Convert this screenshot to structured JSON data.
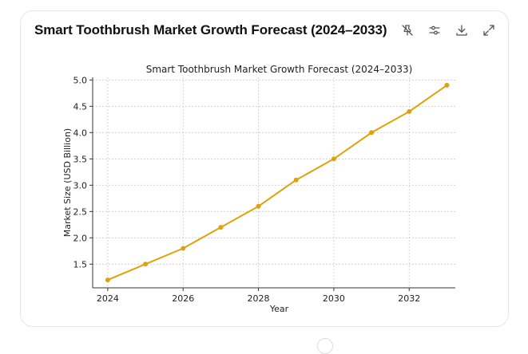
{
  "card": {
    "title": "Smart Toothbrush Market Growth Forecast (2024–2033)"
  },
  "toolbar": {
    "icons": [
      "pin-off-icon",
      "sliders-icon",
      "download-icon",
      "expand-icon"
    ]
  },
  "colors": {
    "series": "#e0a20a",
    "grid": "#cccccc",
    "axis": "#333333"
  },
  "chart_data": {
    "type": "line",
    "title": "Smart Toothbrush Market Growth Forecast (2024–2033)",
    "xlabel": "Year",
    "ylabel": "Market Size (USD Billion)",
    "x": [
      2024,
      2025,
      2026,
      2027,
      2028,
      2029,
      2030,
      2031,
      2032,
      2033
    ],
    "series": [
      {
        "name": "Market Size",
        "values": [
          1.2,
          1.5,
          1.8,
          2.2,
          2.6,
          3.1,
          3.5,
          4.0,
          4.4,
          4.9
        ]
      }
    ],
    "xticks": [
      "2024",
      "2026",
      "2028",
      "2030",
      "2032"
    ],
    "yticks": [
      "1.5",
      "2.0",
      "2.5",
      "3.0",
      "3.5",
      "4.0",
      "4.5",
      "5.0"
    ],
    "xlim": [
      2023.6,
      2033.5
    ],
    "ylim": [
      1.05,
      5.05
    ],
    "grid": true,
    "legend": "none"
  }
}
